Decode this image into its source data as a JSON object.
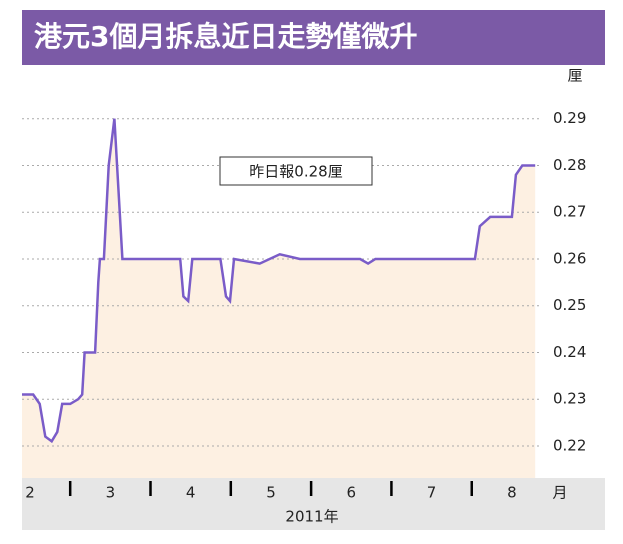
{
  "chart_data": {
    "type": "line",
    "title": "港元3個月拆息近日走勢僅微升",
    "y_unit": "厘",
    "x_unit": "月",
    "x_caption": "2011年",
    "annotation": "昨日報0.28厘",
    "x": [
      2.4,
      2.54,
      2.62,
      2.69,
      2.77,
      2.84,
      2.9,
      3.0,
      3.1,
      3.15,
      3.18,
      3.31,
      3.35,
      3.37,
      3.42,
      3.48,
      3.55,
      3.6,
      3.65,
      3.75,
      3.99,
      4.37,
      4.41,
      4.47,
      4.52,
      4.87,
      4.94,
      4.99,
      5.04,
      5.36,
      5.61,
      5.86,
      6.61,
      6.71,
      6.8,
      8.04,
      8.1,
      8.23,
      8.35,
      8.5,
      8.55,
      8.63,
      8.79
    ],
    "series": [
      {
        "name": "3個月拆息",
        "color": "#7a5cc8",
        "values": [
          0.231,
          0.231,
          0.229,
          0.222,
          0.221,
          0.223,
          0.229,
          0.229,
          0.23,
          0.231,
          0.24,
          0.24,
          0.255,
          0.26,
          0.26,
          0.28,
          0.29,
          0.275,
          0.26,
          0.26,
          0.26,
          0.26,
          0.252,
          0.251,
          0.26,
          0.26,
          0.252,
          0.251,
          0.26,
          0.259,
          0.261,
          0.26,
          0.26,
          0.259,
          0.26,
          0.26,
          0.267,
          0.269,
          0.269,
          0.269,
          0.278,
          0.28,
          0.28
        ]
      }
    ],
    "area_color": "#fdf0e2",
    "xlim": [
      2.4,
      8.85
    ],
    "xticks": [
      {
        "value": 2.5,
        "label": "2"
      },
      {
        "value": 3.5,
        "label": "3"
      },
      {
        "value": 4.5,
        "label": "4"
      },
      {
        "value": 5.5,
        "label": "5"
      },
      {
        "value": 6.5,
        "label": "6"
      },
      {
        "value": 7.5,
        "label": "7"
      },
      {
        "value": 8.5,
        "label": "8"
      }
    ],
    "ylim": [
      0.217,
      0.294
    ],
    "yticks": [
      0.22,
      0.23,
      0.24,
      0.25,
      0.26,
      0.27,
      0.28,
      0.29
    ],
    "grid": true
  }
}
